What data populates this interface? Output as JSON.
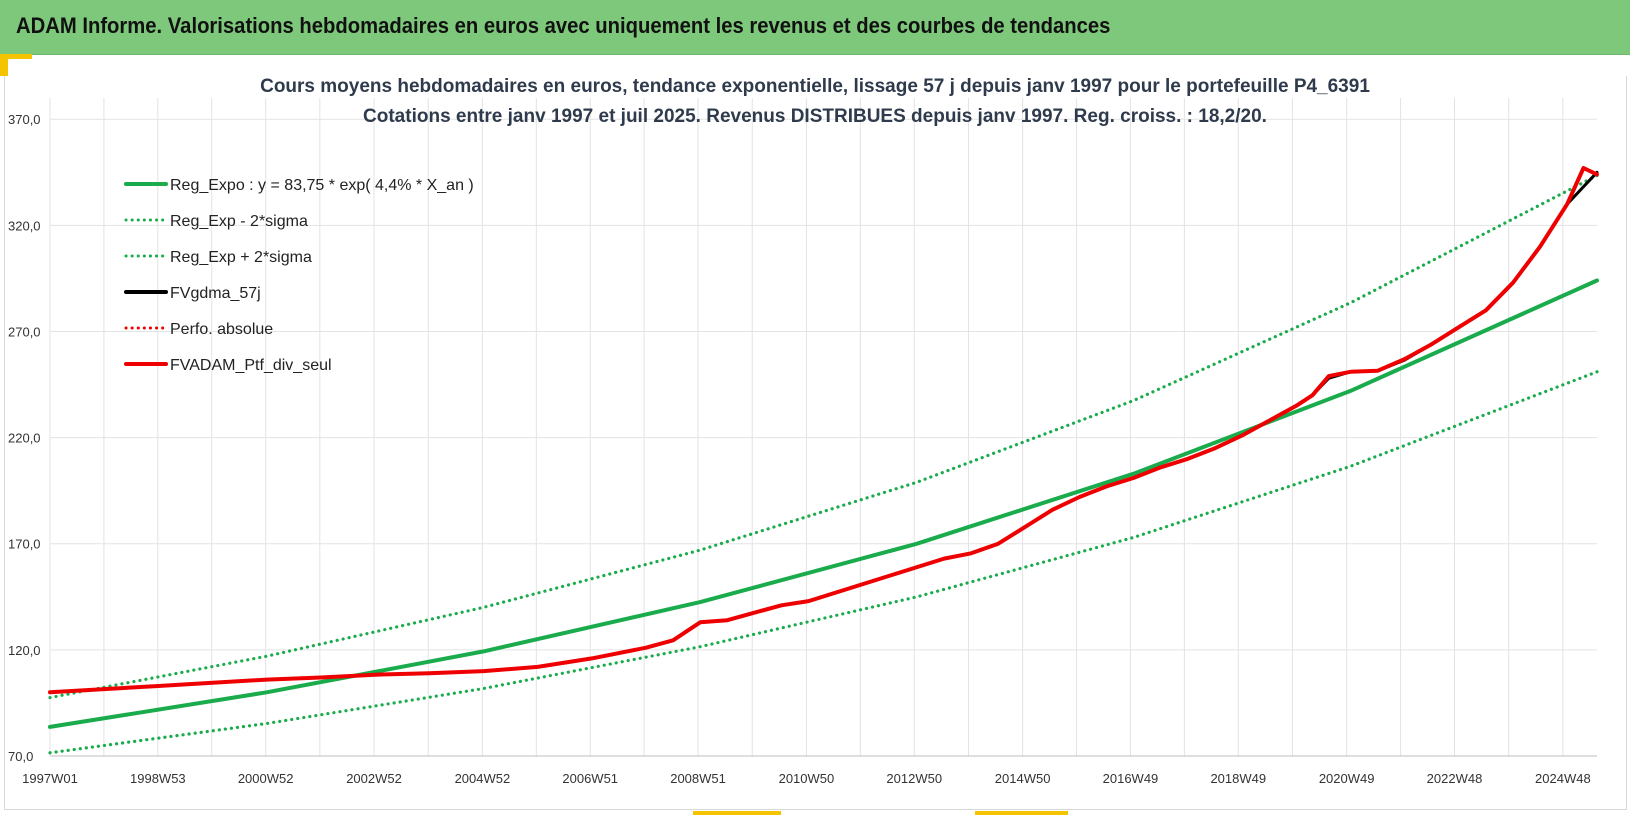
{
  "header": {
    "title": "ADAM Informe. Valorisations hebdomadaires en euros avec uniquement les revenus et des courbes de tendances"
  },
  "colors": {
    "header_bg": "#7dc87a",
    "accent": "#f5c400",
    "trend": "#1aab4c",
    "black_series": "#000000",
    "red_series": "#ee0000",
    "grid": "#e3e3e3"
  },
  "chart_data": {
    "type": "line",
    "title": [
      "Cours moyens hebdomadaires  en euros, tendance exponentielle, lissage 57 j depuis janv 1997 pour le portefeuille P4_6391",
      "Cotations entre janv 1997 et juil 2025. Revenus DISTRIBUES depuis janv 1997. Reg. croiss. : 18,2/20."
    ],
    "xlabel": "",
    "ylabel": "",
    "xlim": [
      1997.0,
      2025.55
    ],
    "ylim": [
      70,
      380
    ],
    "y_ticks": [
      70,
      120,
      170,
      220,
      270,
      320,
      370
    ],
    "y_tick_labels": [
      "70,0",
      "120,0",
      "170,0",
      "220,0",
      "270,0",
      "320,0",
      "370,0"
    ],
    "x_ticks": [
      1997.0,
      1998.99,
      2000.98,
      2002.98,
      2004.98,
      2006.97,
      2008.96,
      2010.96,
      2012.95,
      2014.95,
      2016.94,
      2018.93,
      2020.93,
      2022.92,
      2024.92
    ],
    "x_tick_labels": [
      "1997W01",
      "1998W53",
      "2000W52",
      "2002W52",
      "2004W52",
      "2006W51",
      "2008W51",
      "2010W50",
      "2012W50",
      "2014W50",
      "2016W49",
      "2018W49",
      "2020W49",
      "2022W48",
      "2024W48"
    ],
    "grid": true,
    "legend_position": "top-left",
    "legend": [
      {
        "label": "Reg_Expo : y = 83,75 * exp( 4,4% *  X_an )",
        "color": "#1aab4c",
        "style": "solid"
      },
      {
        "label": "Reg_Exp - 2*sigma",
        "color": "#1aab4c",
        "style": "dotted"
      },
      {
        "label": "Reg_Exp + 2*sigma",
        "color": "#1aab4c",
        "style": "dotted"
      },
      {
        "label": "FVgdma_57j",
        "color": "#000000",
        "style": "solid"
      },
      {
        "label": "Perfo. absolue",
        "color": "#ee0000",
        "style": "dotted"
      },
      {
        "label": "FVADAM_Ptf_div_seul",
        "color": "#ee0000",
        "style": "solid"
      }
    ],
    "series": [
      {
        "name": "Reg_Expo : y = 83,75 * exp( 4,4% *  X_an )",
        "x": [
          1997.0,
          2001.0,
          2005.0,
          2009.0,
          2013.0,
          2017.0,
          2021.0,
          2025.55
        ],
        "values": [
          83.7,
          100.0,
          119.3,
          142.5,
          170.0,
          203.0,
          242.0,
          294.0
        ]
      },
      {
        "name": "Reg_Exp - 2*sigma",
        "x": [
          1997.0,
          2001.0,
          2005.0,
          2009.0,
          2013.0,
          2017.0,
          2021.0,
          2025.55
        ],
        "values": [
          71.5,
          85.3,
          101.8,
          121.5,
          145.0,
          173.0,
          206.5,
          251.0
        ]
      },
      {
        "name": "Reg_Exp + 2*sigma",
        "x": [
          1997.0,
          2001.0,
          2005.0,
          2009.0,
          2013.0,
          2017.0,
          2021.0,
          2025.55
        ],
        "values": [
          97.5,
          117.0,
          140.0,
          167.0,
          199.0,
          237.5,
          283.5,
          343.5
        ]
      },
      {
        "name": "FVgdma_57j",
        "x": [
          1997.0,
          1998.0,
          1999.0,
          2000.0,
          2001.0,
          2002.0,
          2003.0,
          2004.0,
          2005.0,
          2006.0,
          2007.0,
          2008.0,
          2008.5,
          2009.0,
          2009.5,
          2010.0,
          2010.5,
          2011.0,
          2011.5,
          2012.0,
          2012.5,
          2013.0,
          2013.5,
          2014.0,
          2014.5,
          2015.0,
          2015.5,
          2016.0,
          2016.5,
          2017.0,
          2017.5,
          2018.0,
          2018.5,
          2019.0,
          2019.5,
          2020.0,
          2020.3,
          2020.6,
          2021.0,
          2021.5,
          2022.0,
          2022.5,
          2023.0,
          2023.5,
          2024.0,
          2024.5,
          2025.0,
          2025.55
        ],
        "values": [
          100.0,
          101.5,
          103.0,
          104.5,
          106.0,
          107.0,
          108.3,
          109.0,
          110.0,
          112.0,
          116.0,
          121.0,
          124.5,
          133.0,
          134.0,
          137.5,
          141.0,
          143.0,
          147.0,
          151.0,
          155.0,
          159.0,
          163.0,
          165.5,
          170.0,
          178.0,
          186.0,
          192.0,
          197.0,
          201.0,
          206.0,
          210.0,
          215.0,
          221.0,
          228.0,
          235.0,
          240.0,
          248.0,
          251.0,
          251.5,
          256.5,
          264.0,
          272.0,
          280.0,
          293.0,
          310.0,
          330.0,
          345.0
        ]
      },
      {
        "name": "FVADAM_Ptf_div_seul",
        "x": [
          1997.0,
          1998.0,
          1999.0,
          2000.0,
          2001.0,
          2002.0,
          2003.0,
          2004.0,
          2005.0,
          2006.0,
          2007.0,
          2008.0,
          2008.5,
          2009.0,
          2009.5,
          2010.0,
          2010.5,
          2011.0,
          2011.5,
          2012.0,
          2012.5,
          2013.0,
          2013.5,
          2014.0,
          2014.5,
          2015.0,
          2015.5,
          2016.0,
          2016.5,
          2017.0,
          2017.5,
          2018.0,
          2018.5,
          2019.0,
          2019.5,
          2020.0,
          2020.3,
          2020.6,
          2021.0,
          2021.5,
          2022.0,
          2022.5,
          2023.0,
          2023.5,
          2024.0,
          2024.5,
          2025.0,
          2025.3,
          2025.55
        ],
        "values": [
          100.0,
          101.5,
          103.0,
          104.5,
          106.0,
          107.0,
          108.3,
          109.0,
          110.0,
          112.0,
          116.0,
          121.0,
          124.5,
          133.0,
          134.0,
          137.5,
          141.0,
          143.0,
          147.0,
          151.0,
          155.0,
          159.0,
          163.0,
          165.5,
          170.0,
          178.0,
          186.0,
          192.0,
          197.0,
          201.0,
          206.0,
          210.0,
          215.0,
          221.0,
          228.0,
          235.0,
          240.0,
          249.0,
          251.0,
          251.5,
          257.0,
          264.0,
          272.0,
          280.0,
          293.0,
          310.0,
          330.0,
          347.0,
          344.0
        ]
      }
    ]
  }
}
